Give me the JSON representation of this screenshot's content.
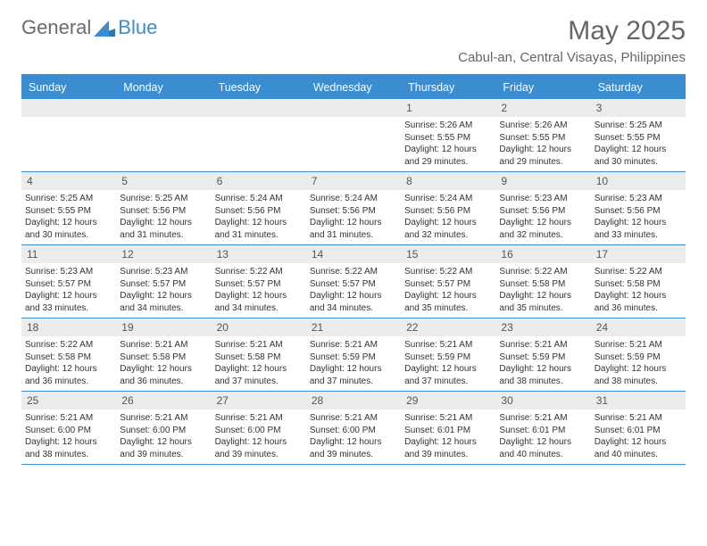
{
  "logo": {
    "text1": "General",
    "text2": "Blue"
  },
  "title": "May 2025",
  "location": "Cabul-an, Central Visayas, Philippines",
  "colors": {
    "accent": "#3a8dd0",
    "headerText": "#ffffff",
    "dayNumBg": "#ececec",
    "bodyText": "#333333",
    "muted": "#666666"
  },
  "dayHeaders": [
    "Sunday",
    "Monday",
    "Tuesday",
    "Wednesday",
    "Thursday",
    "Friday",
    "Saturday"
  ],
  "weeks": [
    [
      {
        "blank": true
      },
      {
        "blank": true
      },
      {
        "blank": true
      },
      {
        "blank": true
      },
      {
        "num": "1",
        "sunrise": "5:26 AM",
        "sunset": "5:55 PM",
        "daylight": "12 hours and 29 minutes."
      },
      {
        "num": "2",
        "sunrise": "5:26 AM",
        "sunset": "5:55 PM",
        "daylight": "12 hours and 29 minutes."
      },
      {
        "num": "3",
        "sunrise": "5:25 AM",
        "sunset": "5:55 PM",
        "daylight": "12 hours and 30 minutes."
      }
    ],
    [
      {
        "num": "4",
        "sunrise": "5:25 AM",
        "sunset": "5:55 PM",
        "daylight": "12 hours and 30 minutes."
      },
      {
        "num": "5",
        "sunrise": "5:25 AM",
        "sunset": "5:56 PM",
        "daylight": "12 hours and 31 minutes."
      },
      {
        "num": "6",
        "sunrise": "5:24 AM",
        "sunset": "5:56 PM",
        "daylight": "12 hours and 31 minutes."
      },
      {
        "num": "7",
        "sunrise": "5:24 AM",
        "sunset": "5:56 PM",
        "daylight": "12 hours and 31 minutes."
      },
      {
        "num": "8",
        "sunrise": "5:24 AM",
        "sunset": "5:56 PM",
        "daylight": "12 hours and 32 minutes."
      },
      {
        "num": "9",
        "sunrise": "5:23 AM",
        "sunset": "5:56 PM",
        "daylight": "12 hours and 32 minutes."
      },
      {
        "num": "10",
        "sunrise": "5:23 AM",
        "sunset": "5:56 PM",
        "daylight": "12 hours and 33 minutes."
      }
    ],
    [
      {
        "num": "11",
        "sunrise": "5:23 AM",
        "sunset": "5:57 PM",
        "daylight": "12 hours and 33 minutes."
      },
      {
        "num": "12",
        "sunrise": "5:23 AM",
        "sunset": "5:57 PM",
        "daylight": "12 hours and 34 minutes."
      },
      {
        "num": "13",
        "sunrise": "5:22 AM",
        "sunset": "5:57 PM",
        "daylight": "12 hours and 34 minutes."
      },
      {
        "num": "14",
        "sunrise": "5:22 AM",
        "sunset": "5:57 PM",
        "daylight": "12 hours and 34 minutes."
      },
      {
        "num": "15",
        "sunrise": "5:22 AM",
        "sunset": "5:57 PM",
        "daylight": "12 hours and 35 minutes."
      },
      {
        "num": "16",
        "sunrise": "5:22 AM",
        "sunset": "5:58 PM",
        "daylight": "12 hours and 35 minutes."
      },
      {
        "num": "17",
        "sunrise": "5:22 AM",
        "sunset": "5:58 PM",
        "daylight": "12 hours and 36 minutes."
      }
    ],
    [
      {
        "num": "18",
        "sunrise": "5:22 AM",
        "sunset": "5:58 PM",
        "daylight": "12 hours and 36 minutes."
      },
      {
        "num": "19",
        "sunrise": "5:21 AM",
        "sunset": "5:58 PM",
        "daylight": "12 hours and 36 minutes."
      },
      {
        "num": "20",
        "sunrise": "5:21 AM",
        "sunset": "5:58 PM",
        "daylight": "12 hours and 37 minutes."
      },
      {
        "num": "21",
        "sunrise": "5:21 AM",
        "sunset": "5:59 PM",
        "daylight": "12 hours and 37 minutes."
      },
      {
        "num": "22",
        "sunrise": "5:21 AM",
        "sunset": "5:59 PM",
        "daylight": "12 hours and 37 minutes."
      },
      {
        "num": "23",
        "sunrise": "5:21 AM",
        "sunset": "5:59 PM",
        "daylight": "12 hours and 38 minutes."
      },
      {
        "num": "24",
        "sunrise": "5:21 AM",
        "sunset": "5:59 PM",
        "daylight": "12 hours and 38 minutes."
      }
    ],
    [
      {
        "num": "25",
        "sunrise": "5:21 AM",
        "sunset": "6:00 PM",
        "daylight": "12 hours and 38 minutes."
      },
      {
        "num": "26",
        "sunrise": "5:21 AM",
        "sunset": "6:00 PM",
        "daylight": "12 hours and 39 minutes."
      },
      {
        "num": "27",
        "sunrise": "5:21 AM",
        "sunset": "6:00 PM",
        "daylight": "12 hours and 39 minutes."
      },
      {
        "num": "28",
        "sunrise": "5:21 AM",
        "sunset": "6:00 PM",
        "daylight": "12 hours and 39 minutes."
      },
      {
        "num": "29",
        "sunrise": "5:21 AM",
        "sunset": "6:01 PM",
        "daylight": "12 hours and 39 minutes."
      },
      {
        "num": "30",
        "sunrise": "5:21 AM",
        "sunset": "6:01 PM",
        "daylight": "12 hours and 40 minutes."
      },
      {
        "num": "31",
        "sunrise": "5:21 AM",
        "sunset": "6:01 PM",
        "daylight": "12 hours and 40 minutes."
      }
    ]
  ],
  "labels": {
    "sunrise": "Sunrise: ",
    "sunset": "Sunset: ",
    "daylight": "Daylight: "
  }
}
